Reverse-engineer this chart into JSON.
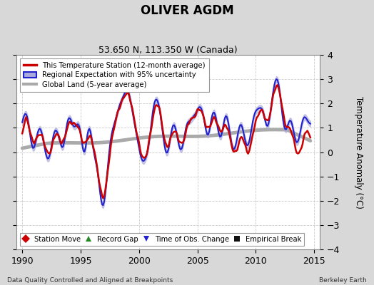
{
  "title": "OLIVER AGDM",
  "subtitle": "53.650 N, 113.350 W (Canada)",
  "ylabel": "Temperature Anomaly (°C)",
  "xlabel_left": "Data Quality Controlled and Aligned at Breakpoints",
  "xlabel_right": "Berkeley Earth",
  "ylim": [
    -4,
    4
  ],
  "xlim": [
    1989.5,
    2015.5
  ],
  "yticks": [
    -4,
    -3,
    -2,
    -1,
    0,
    1,
    2,
    3,
    4
  ],
  "xticks": [
    1990,
    1995,
    2000,
    2005,
    2010,
    2015
  ],
  "bg_color": "#d8d8d8",
  "plot_bg_color": "#ffffff",
  "red_line_color": "#cc0000",
  "blue_line_color": "#2222cc",
  "blue_fill_color": "#aaaadd",
  "gray_line_color": "#aaaaaa",
  "grid_color": "#cccccc",
  "figsize": [
    5.24,
    4.0
  ],
  "dpi": 100
}
